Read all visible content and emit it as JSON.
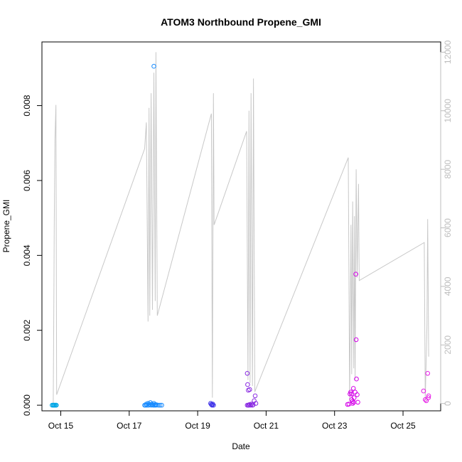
{
  "chart_data": {
    "type": "scatter",
    "title": "ATOM3 Northbound Propene_GMI",
    "xlabel": "Date",
    "ylabel": "Propene_GMI",
    "x_ticks": [
      "Oct 15",
      "Oct 17",
      "Oct 19",
      "Oct 21",
      "Oct 23",
      "Oct 25"
    ],
    "x_tick_days": [
      15,
      17,
      19,
      21,
      23,
      25
    ],
    "xlim": [
      14.45,
      26.1
    ],
    "y_ticks": [
      "0.000",
      "0.002",
      "0.004",
      "0.006",
      "0.008"
    ],
    "y_tick_values": [
      0,
      0.002,
      0.004,
      0.006,
      0.008
    ],
    "ylim": [
      -0.00015,
      0.0097
    ],
    "y2_ticks": [
      "0",
      "2000",
      "4000",
      "6000",
      "8000",
      "10000",
      "12000"
    ],
    "y2_tick_values": [
      0,
      2000,
      4000,
      6000,
      8000,
      10000,
      12000
    ],
    "y2lim": [
      -250,
      12350
    ],
    "grid": false,
    "colors": {
      "line": "#c8c8c8",
      "right_axis": "#bdbdbd",
      "axis": "#000000"
    },
    "line_series": [
      [
        14.78,
        0
      ],
      [
        14.8,
        4000
      ],
      [
        14.81,
        6000
      ],
      [
        14.83,
        9000
      ],
      [
        14.86,
        10200
      ],
      [
        14.88,
        300
      ],
      [
        17.45,
        8700
      ],
      [
        17.5,
        9600
      ],
      [
        17.55,
        2800
      ],
      [
        17.58,
        10100
      ],
      [
        17.6,
        3000
      ],
      [
        17.64,
        10600
      ],
      [
        17.68,
        3200
      ],
      [
        17.72,
        11300
      ],
      [
        17.76,
        3500
      ],
      [
        17.78,
        12000
      ],
      [
        17.82,
        3000
      ],
      [
        19.4,
        9900
      ],
      [
        19.43,
        200
      ],
      [
        19.46,
        10600
      ],
      [
        19.48,
        6100
      ],
      [
        20.43,
        9300
      ],
      [
        20.47,
        800
      ],
      [
        20.5,
        10000
      ],
      [
        20.53,
        700
      ],
      [
        20.56,
        10600
      ],
      [
        20.6,
        600
      ],
      [
        20.63,
        11100
      ],
      [
        20.67,
        400
      ],
      [
        23.4,
        8400
      ],
      [
        23.44,
        100
      ],
      [
        23.48,
        6100
      ],
      [
        23.5,
        1000
      ],
      [
        23.53,
        6900
      ],
      [
        23.56,
        1200
      ],
      [
        23.58,
        6400
      ],
      [
        23.6,
        800
      ],
      [
        23.63,
        8000
      ],
      [
        23.66,
        4300
      ],
      [
        23.7,
        7500
      ],
      [
        23.72,
        4200
      ],
      [
        25.62,
        5500
      ],
      [
        25.65,
        100
      ],
      [
        25.7,
        2700
      ],
      [
        25.72,
        6300
      ],
      [
        25.75,
        1600
      ]
    ],
    "series": [
      {
        "name": "",
        "color": "#00a6e6",
        "points": [
          [
            14.75,
            0
          ],
          [
            14.78,
            0
          ],
          [
            14.8,
            0
          ],
          [
            14.82,
            0
          ],
          [
            14.85,
            0
          ],
          [
            14.87,
            0
          ]
        ]
      },
      {
        "name": "",
        "color": "#1a8cff",
        "points": [
          [
            17.45,
            0
          ],
          [
            17.48,
            0
          ],
          [
            17.5,
            3e-05
          ],
          [
            17.52,
            0
          ],
          [
            17.55,
            5e-05
          ],
          [
            17.57,
            0
          ],
          [
            17.6,
            2e-05
          ],
          [
            17.62,
            7e-05
          ],
          [
            17.64,
            0
          ],
          [
            17.66,
            3e-05
          ],
          [
            17.68,
            1e-05
          ],
          [
            17.7,
            0
          ],
          [
            17.72,
            5e-05
          ],
          [
            17.74,
            0
          ],
          [
            17.76,
            2e-05
          ],
          [
            17.78,
            0
          ],
          [
            17.8,
            1e-05
          ],
          [
            17.85,
            0
          ],
          [
            17.9,
            0
          ],
          [
            17.95,
            0
          ],
          [
            17.72,
            0.00905
          ]
        ]
      },
      {
        "name": "",
        "color": "#3a2ee8",
        "points": [
          [
            19.38,
            5e-05
          ],
          [
            19.4,
            2e-05
          ],
          [
            19.42,
            0
          ],
          [
            19.44,
            3e-05
          ],
          [
            19.46,
            0
          ]
        ]
      },
      {
        "name": "",
        "color": "#8a2be2",
        "points": [
          [
            20.45,
            0.00085
          ],
          [
            20.46,
            0.00055
          ],
          [
            20.48,
            0.0004
          ],
          [
            20.52,
            0.00042
          ],
          [
            20.45,
            0
          ],
          [
            20.48,
            0
          ],
          [
            20.5,
            0
          ],
          [
            20.52,
            2e-05
          ],
          [
            20.55,
            0
          ],
          [
            20.57,
            3e-05
          ],
          [
            20.6,
            0
          ],
          [
            20.62,
            1e-05
          ],
          [
            20.65,
            0.00012
          ],
          [
            20.68,
            0.00025
          ],
          [
            20.7,
            5e-05
          ]
        ]
      },
      {
        "name": "",
        "color": "#d400e8",
        "points": [
          [
            23.38,
            2e-05
          ],
          [
            23.42,
            3e-05
          ],
          [
            23.45,
            0.0003
          ],
          [
            23.47,
            0.00035
          ],
          [
            23.5,
            0.0003
          ],
          [
            23.52,
            0.0001
          ],
          [
            23.53,
            5e-05
          ],
          [
            23.55,
            0.00045
          ],
          [
            23.57,
            0.0002
          ],
          [
            23.6,
            0.00035
          ],
          [
            23.62,
            0.0035
          ],
          [
            23.63,
            0.00175
          ],
          [
            23.64,
            0.0007
          ],
          [
            23.66,
            0.00028
          ],
          [
            23.68,
            8e-05
          ],
          [
            23.5,
            0.00015
          ],
          [
            23.56,
            8e-05
          ]
        ]
      },
      {
        "name": "",
        "color": "#e61ae6",
        "points": [
          [
            25.6,
            0.00038
          ],
          [
            25.65,
            0.00015
          ],
          [
            25.68,
            0.00012
          ],
          [
            25.72,
            0.00085
          ],
          [
            25.74,
            0.0002
          ],
          [
            25.75,
            0.00025
          ]
        ]
      }
    ]
  }
}
